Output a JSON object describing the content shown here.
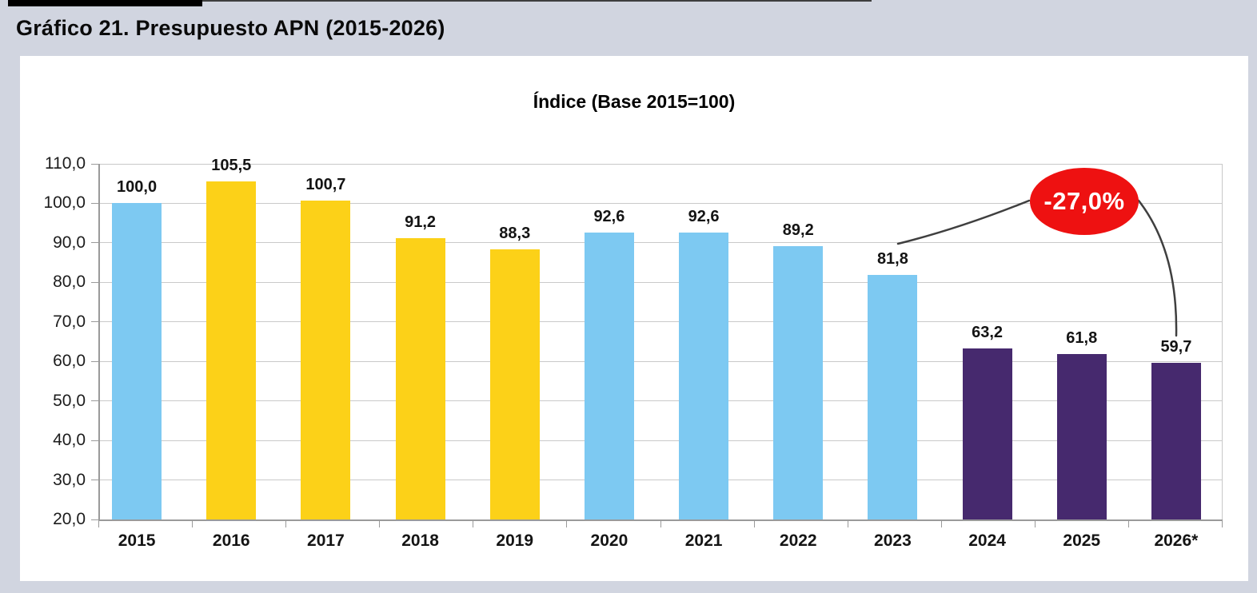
{
  "page": {
    "title": "Gráfico 21. Presupuesto APN (2015-2026)"
  },
  "chart_data": {
    "type": "bar",
    "title": "Índice (Base 2015=100)",
    "categories": [
      "2015",
      "2016",
      "2017",
      "2018",
      "2019",
      "2020",
      "2021",
      "2022",
      "2023",
      "2024",
      "2025",
      "2026*"
    ],
    "values": [
      100.0,
      105.5,
      100.7,
      91.2,
      88.3,
      92.6,
      92.6,
      89.2,
      81.8,
      63.2,
      61.8,
      59.7
    ],
    "value_labels": [
      "100,0",
      "105,5",
      "100,7",
      "91,2",
      "88,3",
      "92,6",
      "92,6",
      "89,2",
      "81,8",
      "63,2",
      "61,8",
      "59,7"
    ],
    "bar_color_keys": [
      "blue",
      "yellow",
      "yellow",
      "yellow",
      "yellow",
      "blue",
      "blue",
      "blue",
      "blue",
      "purple",
      "purple",
      "purple"
    ],
    "colors": {
      "blue": "#7dc9f2",
      "yellow": "#fcd118",
      "purple": "#46296e",
      "annotation_red": "#ee1111",
      "annotation_text": "#ffffff",
      "background": "#d1d5e0",
      "panel": "#ffffff"
    },
    "xlabel": "",
    "ylabel": "",
    "ylim": [
      20,
      110
    ],
    "ytick_step": 10,
    "ytick_labels": [
      "110,0",
      "100,0",
      "90,0",
      "80,0",
      "70,0",
      "60,0",
      "50,0",
      "40,0",
      "30,0",
      "20,0"
    ],
    "grid": true,
    "legend": false,
    "annotation": {
      "label": "-27,0%",
      "from_category": "2023",
      "to_category": "2026*"
    }
  }
}
